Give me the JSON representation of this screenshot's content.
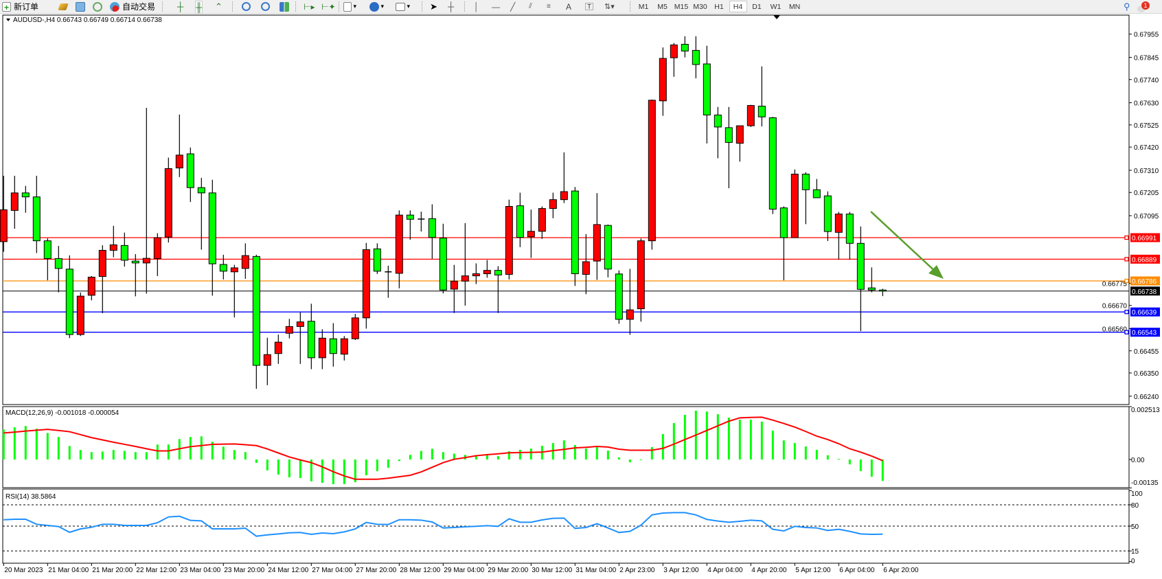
{
  "toolbar": {
    "new_order_label": "新订单",
    "auto_trading_label": "自动交易",
    "icons": [
      "new-order-icon",
      "gold-bars-icon",
      "market-watch-icon",
      "signals-icon",
      "auto-trading-icon",
      "bar-chart-icon",
      "candlestick-icon",
      "line-chart-icon",
      "zoom-in-icon",
      "zoom-out-icon",
      "tile-windows-icon",
      "autoscroll-icon",
      "chart-shift-icon",
      "indicators-icon",
      "periods-icon",
      "templates-icon",
      "cursor-icon",
      "crosshair-icon",
      "vertical-line-icon",
      "horizontal-line-icon",
      "trendline-icon",
      "equidistant-channel-icon",
      "fibonacci-icon",
      "text-icon",
      "text-label-icon",
      "arrows-icon"
    ],
    "text_tool_label": "A",
    "timeframes": [
      "M1",
      "M5",
      "M15",
      "M30",
      "H1",
      "H4",
      "D1",
      "W1",
      "MN"
    ],
    "active_timeframe": "H4",
    "notification_count": "1"
  },
  "chart": {
    "header": "AUDUSD-,H4  0.66743 0.66749 0.66714 0.66738",
    "symbol": "AUDUSD-",
    "timeframe": "H4",
    "up_color": "#ff0000",
    "down_color": "#00ff00",
    "price_ticks": [
      "0.67955",
      "0.67845",
      "0.67740",
      "0.67630",
      "0.67525",
      "0.67420",
      "0.67310",
      "0.67205",
      "0.67095",
      "0.66775",
      "0.66670",
      "0.66560",
      "0.66455",
      "0.66350",
      "0.66240"
    ],
    "price_lines": [
      {
        "price": 0.66991,
        "label": "0.66991",
        "color": "#ff0000"
      },
      {
        "price": 0.66889,
        "label": "0.66889",
        "color": "#ff0000"
      },
      {
        "price": 0.66786,
        "label": "0.66786",
        "color": "#ff8c00"
      },
      {
        "price": 0.66639,
        "label": "0.66639",
        "color": "#0000ff"
      },
      {
        "price": 0.66543,
        "label": "0.66543",
        "color": "#0000ff"
      }
    ],
    "bid_line": {
      "price": 0.66738,
      "label": "0.66738",
      "color": "#000000"
    },
    "arrow_annotation": {
      "color": "#5a9e2c",
      "direction": "down-right"
    },
    "time_labels": [
      "20 Mar 2023",
      "21 Mar 04:00",
      "21 Mar 20:00",
      "22 Mar 12:00",
      "23 Mar 04:00",
      "23 Mar 20:00",
      "24 Mar 12:00",
      "27 Mar 04:00",
      "27 Mar 20:00",
      "28 Mar 12:00",
      "29 Mar 04:00",
      "29 Mar 20:00",
      "30 Mar 12:00",
      "31 Mar 04:00",
      "2 Apr 23:00",
      "3 Apr 12:00",
      "4 Apr 04:00",
      "4 Apr 20:00",
      "5 Apr 12:00",
      "6 Apr 04:00",
      "6 Apr 20:00"
    ]
  },
  "macd": {
    "header": "MACD(12,26,9) -0.001018 -0.000054",
    "ticks": [
      "0.002513",
      "0.00",
      "-0.00135"
    ],
    "histogram_color": "#00ff00",
    "signal_color": "#ff0000"
  },
  "rsi": {
    "header": "RSI(14) 38.5864",
    "ticks": [
      "100",
      "80",
      "50",
      "15",
      "0"
    ],
    "levels": [
      80,
      50,
      15
    ],
    "line_color": "#1e90ff"
  },
  "chart_data": {
    "type": "candlestick",
    "ohlc": [
      [
        0.66972,
        0.67284,
        0.66924,
        0.67123
      ],
      [
        0.6712,
        0.67284,
        0.67033,
        0.67203
      ],
      [
        0.67203,
        0.67236,
        0.67109,
        0.67184
      ],
      [
        0.67184,
        0.67284,
        0.66918,
        0.66976
      ],
      [
        0.66976,
        0.66988,
        0.66789,
        0.66892
      ],
      [
        0.66892,
        0.66952,
        0.66732,
        0.66845
      ],
      [
        0.66842,
        0.66907,
        0.66515,
        0.66532
      ],
      [
        0.66532,
        0.66731,
        0.66525,
        0.66714
      ],
      [
        0.66718,
        0.66809,
        0.66694,
        0.66804
      ],
      [
        0.66807,
        0.66955,
        0.66633,
        0.66931
      ],
      [
        0.66931,
        0.67047,
        0.66898,
        0.66957
      ],
      [
        0.66954,
        0.67015,
        0.66854,
        0.66884
      ],
      [
        0.6688,
        0.66913,
        0.66713,
        0.66871
      ],
      [
        0.66871,
        0.67606,
        0.66726,
        0.66893
      ],
      [
        0.66892,
        0.67012,
        0.66809,
        0.66991
      ],
      [
        0.66994,
        0.6737,
        0.66968,
        0.67318
      ],
      [
        0.67321,
        0.67574,
        0.67278,
        0.67382
      ],
      [
        0.67388,
        0.67418,
        0.6716,
        0.67228
      ],
      [
        0.67228,
        0.67274,
        0.66934,
        0.67203
      ],
      [
        0.67203,
        0.67265,
        0.66716,
        0.66867
      ],
      [
        0.66864,
        0.6691,
        0.66793,
        0.66832
      ],
      [
        0.66829,
        0.66862,
        0.66613,
        0.66848
      ],
      [
        0.66845,
        0.66964,
        0.66796,
        0.66906
      ],
      [
        0.66902,
        0.6691,
        0.66275,
        0.66386
      ],
      [
        0.66386,
        0.66517,
        0.66292,
        0.66437
      ],
      [
        0.66442,
        0.66532,
        0.66393,
        0.66496
      ],
      [
        0.66538,
        0.66606,
        0.66514,
        0.6657
      ],
      [
        0.6657,
        0.66637,
        0.66393,
        0.66592
      ],
      [
        0.66595,
        0.66678,
        0.66368,
        0.66422
      ],
      [
        0.66422,
        0.66557,
        0.66368,
        0.66515
      ],
      [
        0.66512,
        0.66586,
        0.6638,
        0.66442
      ],
      [
        0.66439,
        0.66525,
        0.66409,
        0.66512
      ],
      [
        0.66512,
        0.6663,
        0.66506,
        0.66611
      ],
      [
        0.66611,
        0.66966,
        0.6656,
        0.66934
      ],
      [
        0.66938,
        0.66964,
        0.66819,
        0.66832
      ],
      [
        0.66829,
        0.66858,
        0.66706,
        0.66827
      ],
      [
        0.66822,
        0.6712,
        0.66751,
        0.67098
      ],
      [
        0.67098,
        0.6712,
        0.66981,
        0.67078
      ],
      [
        0.67079,
        0.67114,
        0.6702,
        0.67077
      ],
      [
        0.67081,
        0.67149,
        0.66891,
        0.66992
      ],
      [
        0.66989,
        0.67057,
        0.66727,
        0.66743
      ],
      [
        0.66747,
        0.66862,
        0.66634,
        0.66785
      ],
      [
        0.66785,
        0.6706,
        0.66669,
        0.6681
      ],
      [
        0.6681,
        0.66869,
        0.66771,
        0.6682
      ],
      [
        0.6682,
        0.66885,
        0.66801,
        0.66836
      ],
      [
        0.66836,
        0.66856,
        0.66634,
        0.66814
      ],
      [
        0.66817,
        0.67171,
        0.66793,
        0.67139
      ],
      [
        0.67142,
        0.67204,
        0.66946,
        0.66992
      ],
      [
        0.66995,
        0.67124,
        0.66895,
        0.67021
      ],
      [
        0.67021,
        0.67139,
        0.66985,
        0.67129
      ],
      [
        0.67129,
        0.67204,
        0.67083,
        0.67171
      ],
      [
        0.67171,
        0.67395,
        0.67155,
        0.67209
      ],
      [
        0.67212,
        0.67231,
        0.66762,
        0.6682
      ],
      [
        0.66817,
        0.67008,
        0.66723,
        0.66877
      ],
      [
        0.6688,
        0.67202,
        0.66791,
        0.67053
      ],
      [
        0.67049,
        0.67053,
        0.66803,
        0.66842
      ],
      [
        0.66819,
        0.66836,
        0.66583,
        0.66604
      ],
      [
        0.66604,
        0.66843,
        0.66531,
        0.66649
      ],
      [
        0.66654,
        0.66987,
        0.66593,
        0.66976
      ],
      [
        0.66976,
        0.67645,
        0.66934,
        0.67642
      ],
      [
        0.67639,
        0.67892,
        0.67568,
        0.6784
      ],
      [
        0.67843,
        0.67913,
        0.67753,
        0.67904
      ],
      [
        0.67907,
        0.67945,
        0.67845,
        0.67875
      ],
      [
        0.67878,
        0.67945,
        0.67746,
        0.67811
      ],
      [
        0.67814,
        0.679,
        0.67437,
        0.67572
      ],
      [
        0.67572,
        0.6761,
        0.67367,
        0.67515
      ],
      [
        0.67512,
        0.6761,
        0.67225,
        0.67442
      ],
      [
        0.67438,
        0.67522,
        0.67351,
        0.67521
      ],
      [
        0.67521,
        0.6762,
        0.67515,
        0.67617
      ],
      [
        0.67614,
        0.67802,
        0.67518,
        0.67563
      ],
      [
        0.67559,
        0.67563,
        0.67103,
        0.67126
      ],
      [
        0.67132,
        0.67139,
        0.66789,
        0.66991
      ],
      [
        0.66991,
        0.67314,
        0.66991,
        0.67292
      ],
      [
        0.67292,
        0.67301,
        0.67055,
        0.67218
      ],
      [
        0.67218,
        0.67269,
        0.6718,
        0.6718
      ],
      [
        0.67189,
        0.6721,
        0.66975,
        0.6702
      ],
      [
        0.67016,
        0.67113,
        0.66888,
        0.67103
      ],
      [
        0.67103,
        0.67113,
        0.66888,
        0.66964
      ],
      [
        0.66964,
        0.67044,
        0.66548,
        0.66746
      ],
      [
        0.66753,
        0.6685,
        0.66732,
        0.66743
      ],
      [
        0.66743,
        0.66749,
        0.66714,
        0.66738
      ]
    ],
    "price_range": [
      0.6624,
      0.67955
    ],
    "macd_histogram": [
      0.00143,
      0.00153,
      0.00159,
      0.00146,
      0.00126,
      0.00107,
      0.00064,
      0.00045,
      0.00035,
      0.00038,
      0.00045,
      0.00041,
      0.00035,
      0.00035,
      0.00071,
      0.00071,
      0.00097,
      0.00107,
      0.0011,
      0.00084,
      0.00061,
      0.00045,
      0.00035,
      -0.00016,
      -0.00052,
      -0.00072,
      -0.00085,
      -0.00088,
      -0.00104,
      -0.00111,
      -0.00117,
      -0.00117,
      -0.00108,
      -0.00075,
      -0.00055,
      -0.00039,
      -7e-05,
      0.00022,
      0.00041,
      0.00051,
      0.00035,
      0.00028,
      0.00022,
      0.00016,
      0.00021,
      0.00016,
      0.00039,
      0.00046,
      0.00052,
      0.00065,
      0.00078,
      0.00091,
      0.00069,
      0.00052,
      0.00059,
      0.00042,
      0.0001,
      -0.00013,
      -2e-05,
      0.00059,
      0.00121,
      0.00173,
      0.00212,
      0.00232,
      0.00228,
      0.00215,
      0.00199,
      0.00189,
      0.00189,
      0.0018,
      0.00137,
      0.00091,
      0.00078,
      0.00062,
      0.00046,
      0.0002,
      3e-05,
      -0.00023,
      -0.00055,
      -0.00082,
      -0.001018
    ],
    "macd_signal": [
      0.00126,
      0.0013,
      0.00135,
      0.00139,
      0.00143,
      0.00138,
      0.00132,
      0.00118,
      0.00104,
      0.00093,
      0.00082,
      0.00072,
      0.00062,
      0.00051,
      0.00041,
      0.00041,
      0.00051,
      0.00061,
      0.00066,
      0.00072,
      0.00073,
      0.00074,
      0.0007,
      0.00066,
      0.0005,
      0.00031,
      0.00012,
      -2e-05,
      -0.00015,
      -0.00035,
      -0.00058,
      -0.00078,
      -0.00094,
      -0.00094,
      -0.00094,
      -0.00089,
      -0.00082,
      -0.00075,
      -0.00059,
      -0.00037,
      -0.00015,
      1e-05,
      9e-05,
      0.00018,
      0.00023,
      0.00027,
      0.00032,
      0.00033,
      0.00034,
      0.00035,
      0.00042,
      0.00048,
      0.00055,
      0.00058,
      0.00062,
      0.00059,
      0.00049,
      0.00044,
      0.00044,
      0.00044,
      0.00053,
      0.00073,
      0.00095,
      0.00116,
      0.00138,
      0.0016,
      0.00182,
      0.00198,
      0.002,
      0.00201,
      0.00187,
      0.00171,
      0.00154,
      0.00133,
      0.00111,
      0.00095,
      0.00075,
      0.00051,
      0.00035,
      0.00016,
      -5.4e-05
    ],
    "macd_range": [
      -0.00135,
      0.002513
    ],
    "rsi": [
      59.0,
      59.7,
      59.7,
      52.6,
      51.0,
      49.4,
      41.3,
      46.1,
      48.4,
      52.6,
      52.6,
      51.0,
      51.0,
      51.0,
      54.8,
      62.9,
      63.9,
      58.1,
      57.4,
      46.1,
      46.1,
      46.1,
      47.1,
      35.8,
      37.7,
      39.0,
      40.6,
      41.0,
      38.4,
      40.3,
      39.4,
      41.9,
      46.1,
      55.2,
      52.6,
      52.3,
      59.0,
      59.0,
      58.4,
      55.8,
      47.4,
      48.1,
      49.0,
      49.7,
      50.6,
      49.7,
      60.3,
      55.5,
      55.5,
      58.7,
      61.0,
      61.3,
      46.8,
      48.1,
      53.5,
      47.4,
      41.0,
      42.6,
      51.3,
      65.8,
      68.4,
      69.0,
      69.0,
      65.8,
      59.4,
      57.1,
      55.5,
      56.8,
      58.4,
      57.4,
      45.5,
      43.2,
      49.7,
      48.1,
      47.4,
      43.9,
      45.5,
      42.6,
      39.0,
      38.4,
      38.5864
    ],
    "rsi_range": [
      0,
      100
    ]
  }
}
